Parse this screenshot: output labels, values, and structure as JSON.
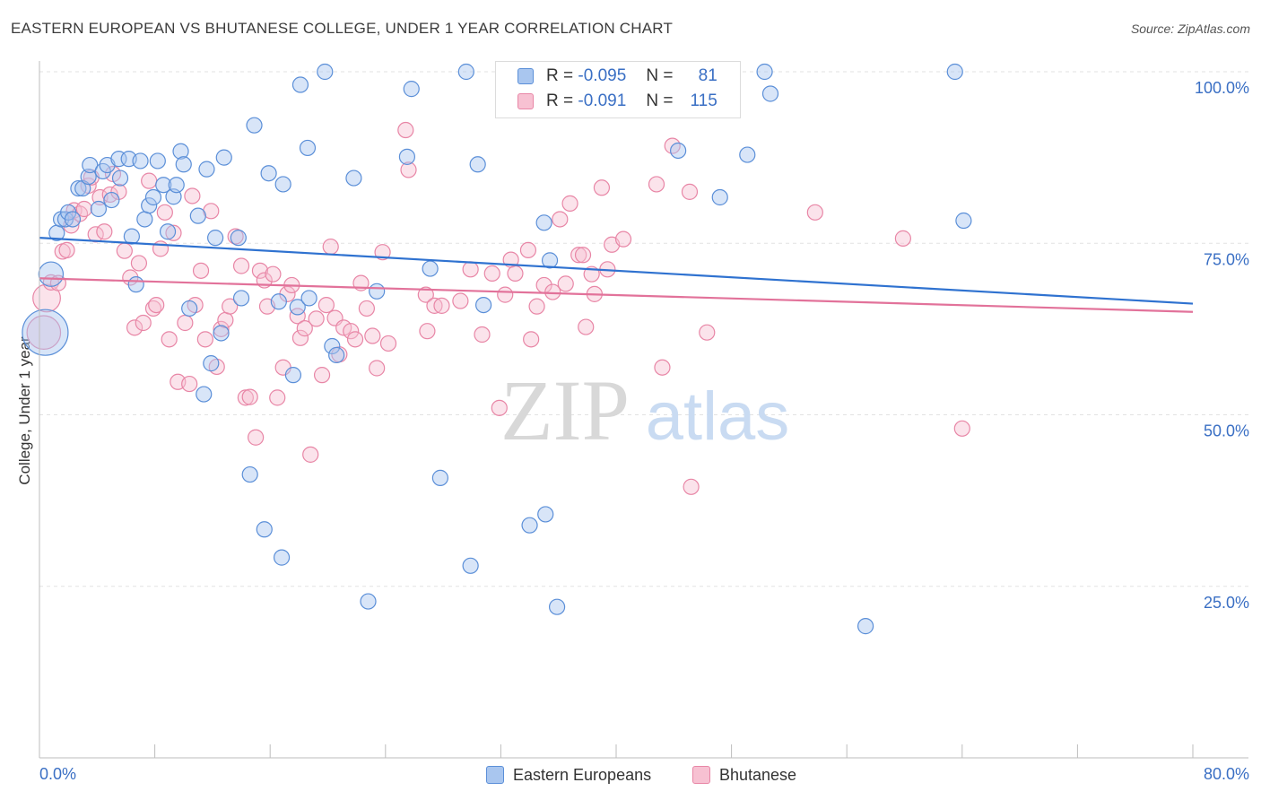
{
  "title": "EASTERN EUROPEAN VS BHUTANESE COLLEGE, UNDER 1 YEAR CORRELATION CHART",
  "source": "Source: ZipAtlas.com",
  "watermark": {
    "zip": "ZIP",
    "atlas": "atlas"
  },
  "legend": {
    "r_label": "R =",
    "n_label": "N =",
    "rows": [
      {
        "r": "-0.095",
        "n": "81"
      },
      {
        "r": "-0.091",
        "n": "115"
      }
    ]
  },
  "bottom_legend": [
    "Eastern Europeans",
    "Bhutanese"
  ],
  "chart_data": {
    "type": "scatter",
    "ylabel": "College, Under 1 year",
    "xlim": [
      0,
      80
    ],
    "ylim": [
      0,
      100
    ],
    "x_tick_labels": [
      "0.0%",
      "80.0%"
    ],
    "y_ticks": [
      25,
      50,
      75,
      100
    ],
    "y_tick_labels": [
      "25.0%",
      "50.0%",
      "75.0%",
      "100.0%"
    ],
    "grid": true,
    "colors": {
      "blue_fill": "#a9c6ef",
      "blue_stroke": "#5b8fd8",
      "blue_line": "#2f72d0",
      "pink_fill": "#f7c1d2",
      "pink_stroke": "#e886a6",
      "pink_line": "#e2729a",
      "tick_text": "#3a6fc4"
    },
    "series": [
      {
        "name": "Eastern Europeans",
        "trend": {
          "x": [
            0,
            80
          ],
          "y": [
            75.8,
            66.2
          ]
        },
        "points": [
          [
            0.4,
            62,
            3
          ],
          [
            0.8,
            70.5,
            1.6
          ],
          [
            1.2,
            76.5,
            1
          ],
          [
            1.5,
            78.5,
            1
          ],
          [
            1.8,
            78.5,
            1
          ],
          [
            2.0,
            79.5,
            1
          ],
          [
            2.3,
            78.5,
            1
          ],
          [
            2.7,
            83,
            1
          ],
          [
            3.0,
            83,
            1
          ],
          [
            3.4,
            84.7,
            1
          ],
          [
            3.5,
            86.4,
            1
          ],
          [
            4.1,
            80,
            1
          ],
          [
            4.4,
            85.5,
            1
          ],
          [
            4.7,
            86.4,
            1
          ],
          [
            5.0,
            81.3,
            1
          ],
          [
            5.5,
            87.3,
            1
          ],
          [
            5.6,
            84.5,
            1
          ],
          [
            6.2,
            87.3,
            1
          ],
          [
            6.4,
            76,
            1
          ],
          [
            6.7,
            69,
            1
          ],
          [
            7.0,
            87,
            1
          ],
          [
            7.3,
            78.5,
            1
          ],
          [
            7.6,
            80.5,
            1
          ],
          [
            7.9,
            81.7,
            1
          ],
          [
            8.2,
            87,
            1
          ],
          [
            8.6,
            83.5,
            1
          ],
          [
            8.9,
            76.7,
            1
          ],
          [
            9.3,
            81.8,
            1
          ],
          [
            9.5,
            83.5,
            1
          ],
          [
            9.8,
            88.4,
            1
          ],
          [
            10.0,
            86.5,
            1
          ],
          [
            10.4,
            65.5,
            1
          ],
          [
            11.0,
            79,
            1
          ],
          [
            11.4,
            53,
            1
          ],
          [
            11.6,
            85.8,
            1
          ],
          [
            11.9,
            57.5,
            1
          ],
          [
            12.2,
            75.8,
            1
          ],
          [
            12.6,
            61.9,
            1
          ],
          [
            12.8,
            87.5,
            1
          ],
          [
            13.8,
            75.8,
            1
          ],
          [
            14.0,
            67,
            1
          ],
          [
            14.6,
            41.3,
            1
          ],
          [
            14.9,
            92.2,
            1
          ],
          [
            15.6,
            33.3,
            1
          ],
          [
            15.9,
            85.2,
            1
          ],
          [
            16.6,
            66.5,
            1
          ],
          [
            16.8,
            29.2,
            1
          ],
          [
            16.9,
            83.6,
            1
          ],
          [
            17.6,
            55.8,
            1
          ],
          [
            17.9,
            65.7,
            1
          ],
          [
            18.1,
            98.1,
            1
          ],
          [
            18.6,
            88.9,
            1
          ],
          [
            18.7,
            67,
            1
          ],
          [
            20.3,
            60,
            1
          ],
          [
            20.6,
            58.7,
            1
          ],
          [
            21.8,
            84.5,
            1
          ],
          [
            22.8,
            22.8,
            1
          ],
          [
            23.4,
            68,
            1
          ],
          [
            25.5,
            87.6,
            1
          ],
          [
            25.8,
            97.5,
            1
          ],
          [
            27.1,
            71.3,
            1
          ],
          [
            27.8,
            40.8,
            1
          ],
          [
            29.9,
            28,
            1
          ],
          [
            30.4,
            86.5,
            1
          ],
          [
            30.8,
            66,
            1
          ],
          [
            35.0,
            78,
            1
          ],
          [
            34.0,
            33.9,
            1
          ],
          [
            35.1,
            35.5,
            1
          ],
          [
            35.4,
            72.5,
            1
          ],
          [
            35.9,
            22,
            1
          ],
          [
            40.0,
            100,
            1
          ],
          [
            44.3,
            88.5,
            1
          ],
          [
            47.2,
            81.7,
            1
          ],
          [
            49.1,
            87.9,
            1
          ],
          [
            50.3,
            100,
            1
          ],
          [
            50.7,
            96.8,
            1
          ],
          [
            57.3,
            19.2,
            1
          ],
          [
            63.5,
            100,
            1
          ],
          [
            64.1,
            78.3,
            1
          ],
          [
            19.8,
            100,
            1
          ],
          [
            29.6,
            100,
            1
          ]
        ]
      },
      {
        "name": "Bhutanese",
        "trend": {
          "x": [
            0,
            80
          ],
          "y": [
            69.9,
            65
          ]
        },
        "points": [
          [
            0.3,
            62,
            2.2
          ],
          [
            0.5,
            67,
            1.8
          ],
          [
            0.8,
            69.3,
            1
          ],
          [
            1.3,
            69.2,
            1
          ],
          [
            1.6,
            73.8,
            1
          ],
          [
            1.9,
            74,
            1
          ],
          [
            2.2,
            77.6,
            1
          ],
          [
            2.4,
            79.8,
            1
          ],
          [
            2.8,
            79.3,
            1
          ],
          [
            3.1,
            80,
            1
          ],
          [
            3.4,
            83.4,
            1
          ],
          [
            3.6,
            84.6,
            1
          ],
          [
            3.9,
            76.3,
            1
          ],
          [
            4.2,
            81.7,
            1
          ],
          [
            4.5,
            76.7,
            1
          ],
          [
            4.9,
            82.1,
            1
          ],
          [
            5.1,
            85.1,
            1
          ],
          [
            5.5,
            82.5,
            1
          ],
          [
            5.9,
            73.9,
            1
          ],
          [
            6.3,
            70,
            1
          ],
          [
            6.6,
            62.7,
            1
          ],
          [
            6.9,
            72.1,
            1
          ],
          [
            7.2,
            63.4,
            1
          ],
          [
            7.6,
            84.1,
            1
          ],
          [
            7.9,
            65.5,
            1
          ],
          [
            8.1,
            66,
            1
          ],
          [
            8.4,
            74.2,
            1
          ],
          [
            8.7,
            79.5,
            1
          ],
          [
            9.0,
            61,
            1
          ],
          [
            9.3,
            76.5,
            1
          ],
          [
            9.6,
            54.8,
            1
          ],
          [
            10.1,
            63.4,
            1
          ],
          [
            10.4,
            54.5,
            1
          ],
          [
            10.6,
            81.9,
            1
          ],
          [
            10.8,
            66,
            1
          ],
          [
            11.2,
            71,
            1
          ],
          [
            11.5,
            61,
            1
          ],
          [
            11.9,
            79.7,
            1
          ],
          [
            12.3,
            57,
            1
          ],
          [
            12.6,
            62.5,
            1
          ],
          [
            12.9,
            63.8,
            1
          ],
          [
            13.2,
            65.8,
            1
          ],
          [
            13.6,
            76,
            1
          ],
          [
            14.0,
            71.7,
            1
          ],
          [
            14.3,
            52.5,
            1
          ],
          [
            14.6,
            52.6,
            1
          ],
          [
            15.0,
            46.7,
            1
          ],
          [
            15.3,
            71,
            1
          ],
          [
            15.6,
            69.6,
            1
          ],
          [
            15.8,
            65.8,
            1
          ],
          [
            16.2,
            70.5,
            1
          ],
          [
            16.5,
            52.5,
            1
          ],
          [
            16.9,
            56.9,
            1
          ],
          [
            17.2,
            67.6,
            1
          ],
          [
            17.5,
            68.9,
            1
          ],
          [
            17.9,
            64.4,
            1
          ],
          [
            18.1,
            61.2,
            1
          ],
          [
            18.4,
            62.6,
            1
          ],
          [
            18.8,
            44.2,
            1
          ],
          [
            19.2,
            64,
            1
          ],
          [
            19.6,
            55.8,
            1
          ],
          [
            19.9,
            66,
            1
          ],
          [
            20.2,
            74.5,
            1
          ],
          [
            20.5,
            64.1,
            1
          ],
          [
            20.8,
            58.8,
            1
          ],
          [
            21.1,
            62.7,
            1
          ],
          [
            21.6,
            62.2,
            1
          ],
          [
            21.9,
            61,
            1
          ],
          [
            22.3,
            69.2,
            1
          ],
          [
            22.7,
            65.5,
            1
          ],
          [
            23.1,
            61.5,
            1
          ],
          [
            23.4,
            56.8,
            1
          ],
          [
            23.8,
            73.7,
            1
          ],
          [
            24.2,
            60.4,
            1
          ],
          [
            25.4,
            91.5,
            1
          ],
          [
            25.6,
            85.7,
            1
          ],
          [
            26.8,
            67.5,
            1
          ],
          [
            26.9,
            62.2,
            1
          ],
          [
            27.4,
            65.9,
            1
          ],
          [
            27.9,
            65.9,
            1
          ],
          [
            29.2,
            66.6,
            1
          ],
          [
            29.9,
            71.2,
            1
          ],
          [
            30.7,
            61.7,
            1
          ],
          [
            31.4,
            70.6,
            1
          ],
          [
            31.9,
            51,
            1
          ],
          [
            32.3,
            67.5,
            1
          ],
          [
            32.7,
            72.6,
            1
          ],
          [
            33.0,
            70.6,
            1
          ],
          [
            33.9,
            74,
            1
          ],
          [
            34.1,
            61,
            1
          ],
          [
            34.5,
            65.8,
            1
          ],
          [
            35.0,
            68.9,
            1
          ],
          [
            35.6,
            67.9,
            1
          ],
          [
            36.1,
            78.5,
            1
          ],
          [
            36.5,
            69.1,
            1
          ],
          [
            36.8,
            80.8,
            1
          ],
          [
            37.4,
            73.3,
            1
          ],
          [
            37.7,
            73.3,
            1
          ],
          [
            37.9,
            62.8,
            1
          ],
          [
            38.3,
            70.5,
            1
          ],
          [
            38.5,
            67.6,
            1
          ],
          [
            39.0,
            83.1,
            1
          ],
          [
            39.4,
            71.2,
            1
          ],
          [
            39.7,
            74.8,
            1
          ],
          [
            40.5,
            75.6,
            1
          ],
          [
            42.8,
            83.6,
            1
          ],
          [
            43.2,
            56.9,
            1
          ],
          [
            43.9,
            89.2,
            1
          ],
          [
            45.1,
            82.5,
            1
          ],
          [
            45.2,
            39.5,
            1
          ],
          [
            46.3,
            62,
            1
          ],
          [
            53.8,
            79.5,
            1
          ],
          [
            59.9,
            75.7,
            1
          ],
          [
            64.0,
            48,
            1
          ]
        ]
      }
    ]
  }
}
